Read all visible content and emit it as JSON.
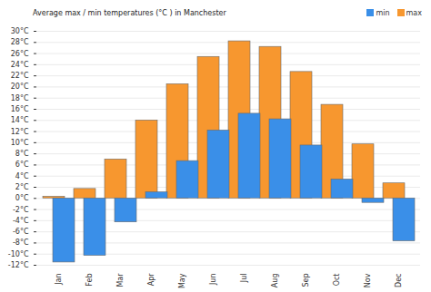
{
  "chart_data": {
    "type": "bar",
    "title": "Average max / min temperatures (°C ) in Manchester",
    "categories": [
      "Jan",
      "Feb",
      "Mar",
      "Apr",
      "May",
      "Jun",
      "Jul",
      "Aug",
      "Sep",
      "Oct",
      "Nov",
      "Dec"
    ],
    "series": [
      {
        "name": "min",
        "color": "#3a8fe8",
        "values": [
          -11.5,
          -10.3,
          -4.3,
          1.1,
          6.7,
          12.2,
          15.2,
          14.2,
          9.5,
          3.4,
          -0.8,
          -7.7
        ]
      },
      {
        "name": "max",
        "color": "#f7972f",
        "values": [
          0.3,
          1.7,
          7.0,
          14.0,
          20.5,
          25.4,
          28.2,
          27.2,
          22.7,
          16.8,
          9.7,
          2.7
        ]
      }
    ],
    "ylim": [
      -12,
      30
    ],
    "yticks": [
      {
        "value": -12,
        "label": "-12°C"
      },
      {
        "value": -10,
        "label": "-10°C"
      },
      {
        "value": -8,
        "label": "-8°C"
      },
      {
        "value": -6,
        "label": "-6°C"
      },
      {
        "value": -4,
        "label": "-4°C"
      },
      {
        "value": -2,
        "label": "-2°C"
      },
      {
        "value": 0,
        "label": "0°C"
      },
      {
        "value": 2,
        "label": "2°C"
      },
      {
        "value": 4,
        "label": "4°C"
      },
      {
        "value": 6,
        "label": "6°C"
      },
      {
        "value": 8,
        "label": "8°C"
      },
      {
        "value": 10,
        "label": "10°C"
      },
      {
        "value": 12,
        "label": "12°C"
      },
      {
        "value": 14,
        "label": "14°C"
      },
      {
        "value": 16,
        "label": "16°C"
      },
      {
        "value": 18,
        "label": "18°C"
      },
      {
        "value": 20,
        "label": "20°C"
      },
      {
        "value": 22,
        "label": "22°C"
      },
      {
        "value": 24,
        "label": "24°C"
      },
      {
        "value": 26,
        "label": "26°C"
      },
      {
        "value": 28,
        "label": "28°C"
      },
      {
        "value": 30,
        "label": "30°C"
      }
    ],
    "grid": true,
    "legend": "top-right"
  }
}
